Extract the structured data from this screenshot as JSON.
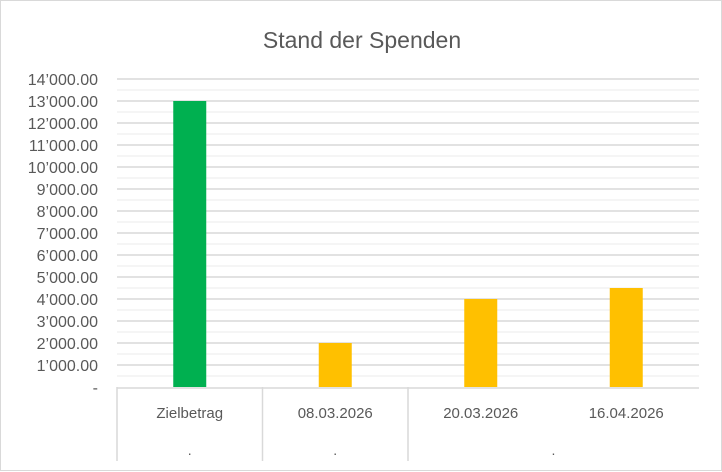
{
  "chart_data": {
    "type": "bar",
    "title": "Stand der Spenden",
    "categories": [
      "Zielbetrag",
      "08.03.2026",
      "20.03.2026",
      "16.04.2026"
    ],
    "groups": [
      {
        "label": ".",
        "span": 1
      },
      {
        "label": ".",
        "span": 1
      },
      {
        "label": ".",
        "span": 2
      }
    ],
    "values": [
      13000,
      2000,
      4000,
      4500
    ],
    "colors": [
      "#00B050",
      "#FFC000",
      "#FFC000",
      "#FFC000"
    ],
    "ylim": [
      0,
      14000
    ],
    "ytick_step": 1000,
    "minor_step": 500,
    "ytick_labels": [
      "-",
      "1’000.00",
      "2’000.00",
      "3’000.00",
      "4’000.00",
      "5’000.00",
      "6’000.00",
      "7’000.00",
      "8’000.00",
      "9’000.00",
      "10’000.00",
      "11’000.00",
      "12’000.00",
      "13’000.00",
      "14’000.00"
    ],
    "xlabel": "",
    "ylabel": "",
    "grid": true,
    "legend": "none"
  }
}
